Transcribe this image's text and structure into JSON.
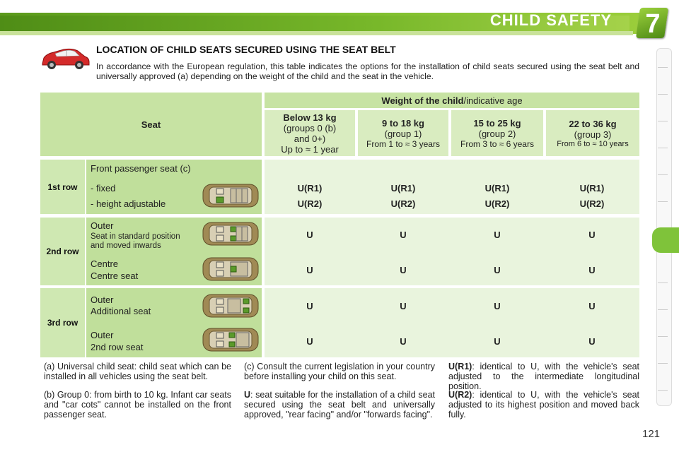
{
  "header": {
    "title": "CHILD SAFETY",
    "chapter": "7"
  },
  "section": {
    "title": "LOCATION OF CHILD SEATS SECURED USING THE SEAT BELT",
    "intro": "In accordance with the European regulation, this table indicates the options for the installation of child seats secured using the seat belt and universally approved (a) depending on the weight of the child and the seat in the vehicle."
  },
  "table": {
    "seat_header": "Seat",
    "weight_header_bold": "Weight of the child",
    "weight_header_rest": "/indicative age",
    "columns": [
      {
        "l1": "Below 13 kg",
        "l2": "(groups 0 (b)",
        "l3": "and 0+)",
        "l4": "Up to ≈ 1 year"
      },
      {
        "l1": "9 to 18 kg",
        "l2": "(group 1)",
        "l3": "From 1 to ≈ 3 years"
      },
      {
        "l1": "15 to 25 kg",
        "l2": "(group 2)",
        "l3": "From 3 to ≈ 6 years"
      },
      {
        "l1": "22 to 36 kg",
        "l2": "(group 3)",
        "l3": "From 6 to ≈ 10 years"
      }
    ],
    "rows": {
      "row1": {
        "label": "1st row",
        "seat_title": "Front passenger seat (c)",
        "a_label": "- fixed",
        "b_label": "- height adjustable",
        "a_values": [
          "U(R1)",
          "U(R1)",
          "U(R1)",
          "U(R1)"
        ],
        "b_values": [
          "U(R2)",
          "U(R2)",
          "U(R2)",
          "U(R2)"
        ]
      },
      "row2": {
        "label": "2nd row",
        "a_l1": "Outer",
        "a_l2": "Seat in standard position",
        "a_l3": "and moved inwards",
        "b_l1": "Centre",
        "b_l2": "Centre seat",
        "a_values": [
          "U",
          "U",
          "U",
          "U"
        ],
        "b_values": [
          "U",
          "U",
          "U",
          "U"
        ]
      },
      "row3": {
        "label": "3rd row",
        "a_l1": "Outer",
        "a_l2": "Additional seat",
        "b_l1": "Outer",
        "b_l2": "2nd row seat",
        "a_values": [
          "U",
          "U",
          "U",
          "U"
        ],
        "b_values": [
          "U",
          "U",
          "U",
          "U"
        ]
      }
    }
  },
  "notes": {
    "a": "(a) Universal child seat: child seat which can be installed in all vehicles using the seat belt.",
    "b": "(b) Group 0: from birth to 10 kg. Infant car seats and \"car cots\" cannot be installed on the front passenger seat.",
    "c": "(c) Consult the current legislation in your country before installing your child on this seat.",
    "u_key": "U",
    "u_text": ": seat suitable for the installation of a child seat secured using the seat belt and universally approved, \"rear facing\" and/or \"forwards facing\".",
    "r1_key": "U(R1)",
    "r1_text": ": identical to U, with the vehicle's seat adjusted to the intermediate longitudinal position.",
    "r2_key": "U(R2)",
    "r2_text": ": identical to U, with the vehicle's seat adjusted to its highest position and moved back fully."
  },
  "page_number": "121",
  "colors": {
    "accent_green": "#7fbf2e",
    "table_header": "#c7e3a3",
    "table_body": "#e9f4dd",
    "car_red": "#d42a2a"
  }
}
